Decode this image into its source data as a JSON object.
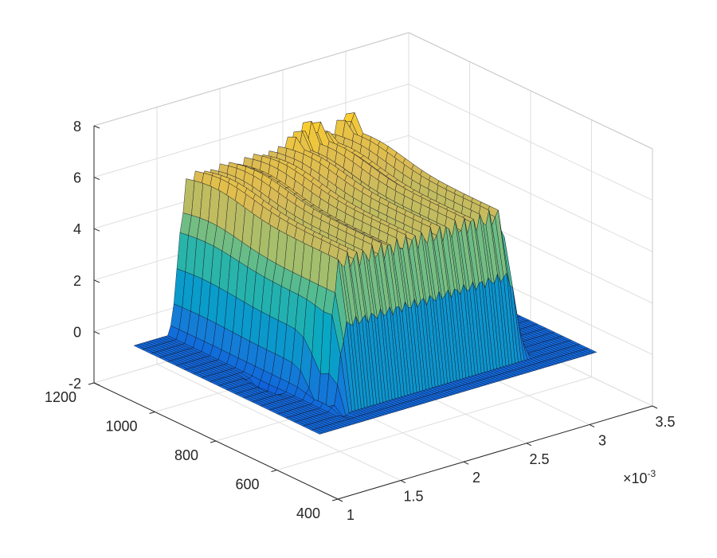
{
  "chart_data": {
    "type": "surface3d",
    "title": "",
    "xlabel": "",
    "ylabel": "",
    "zlabel": "",
    "x_axis": {
      "range": [
        0.001,
        0.0035
      ],
      "ticks": [
        "1",
        "1.5",
        "2",
        "2.5",
        "3",
        "3.5"
      ],
      "tick_values": [
        0.001,
        0.0015,
        0.002,
        0.0025,
        0.003,
        0.0035
      ],
      "multiplier_base": "×10",
      "multiplier_exp": "-3"
    },
    "y_axis": {
      "range": [
        400,
        1200
      ],
      "ticks": [
        "400",
        "600",
        "800",
        "1000",
        "1200"
      ],
      "tick_values": [
        400,
        600,
        800,
        1000,
        1200
      ]
    },
    "z_axis": {
      "range": [
        -2,
        8
      ],
      "ticks": [
        "-2",
        "0",
        "2",
        "4",
        "6",
        "8"
      ],
      "tick_values": [
        -2,
        0,
        2,
        4,
        6,
        8
      ]
    },
    "grid": true,
    "colormap": "parula",
    "surface": {
      "plateau_height": 5.4,
      "x_extent": [
        0.00105,
        0.00325
      ],
      "plateau_x_range": [
        0.0014,
        0.00282
      ],
      "y_extent": [
        480,
        1090
      ],
      "plateau_y_range": [
        560,
        1085
      ],
      "dip_min": -1.7,
      "peak_max": 6.7
    }
  }
}
